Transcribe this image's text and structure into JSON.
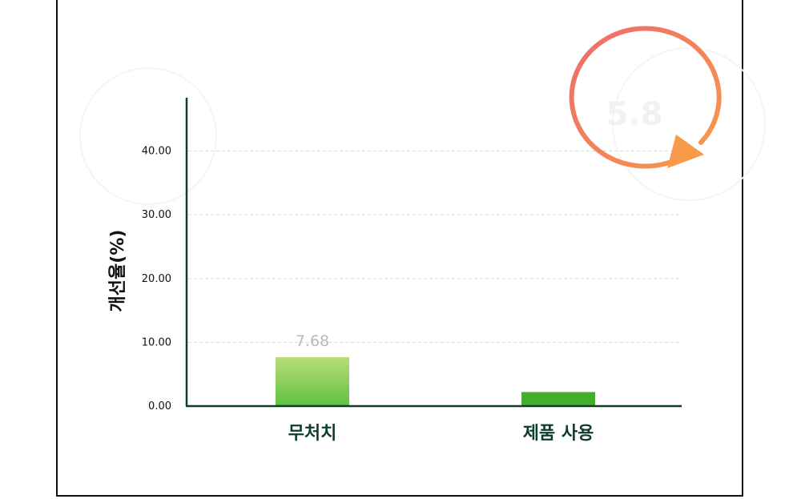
{
  "chart_data": {
    "type": "bar",
    "ylabel": "개선율(%)",
    "xlabel": "",
    "categories": [
      "무처치",
      "제품 사용"
    ],
    "values": [
      7.68,
      2.2
    ],
    "data_labels": [
      "7.68",
      ""
    ],
    "ylim": [
      0,
      48
    ],
    "yticks": [
      "0.00",
      "10.00",
      "20.00",
      "30.00",
      "40.00"
    ],
    "grid": true,
    "legend": "none",
    "annotation": "5.8",
    "colors": {
      "bar_1_top": "#b9dc7a",
      "bar_1_bottom": "#5fc240",
      "bar_2": "#43ad2c",
      "axis": "#0f3d2b",
      "grid": "#d9d9d9",
      "arrow_start": "#ef6b6b",
      "arrow_end": "#f79a4a"
    }
  }
}
